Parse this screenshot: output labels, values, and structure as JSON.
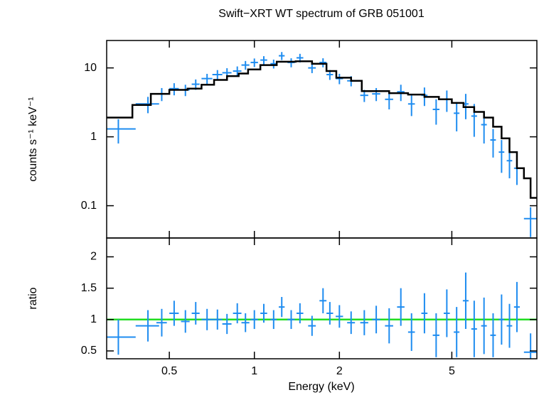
{
  "chart_data": [
    {
      "type": "scatter",
      "title": "Swift−XRT WT spectrum of GRB 051001",
      "ylabel": "counts s⁻¹ keV⁻¹",
      "xscale": "log",
      "yscale": "log",
      "xlim": [
        0.3,
        10
      ],
      "ylim": [
        0.034,
        25
      ],
      "xticks": [
        0.5,
        1,
        2,
        5
      ],
      "yticks": [
        0.1,
        1,
        10
      ],
      "data": {
        "color": "#1e8cf0",
        "x": [
          0.33,
          0.42,
          0.47,
          0.52,
          0.57,
          0.62,
          0.68,
          0.74,
          0.8,
          0.87,
          0.93,
          1.0,
          1.08,
          1.17,
          1.25,
          1.35,
          1.45,
          1.6,
          1.75,
          1.85,
          2.0,
          2.2,
          2.45,
          2.7,
          3.0,
          3.3,
          3.6,
          4.0,
          4.4,
          4.8,
          5.2,
          5.6,
          6.0,
          6.5,
          7.0,
          7.5,
          8.0,
          8.5,
          9.5
        ],
        "x_errors": [
          0.05,
          0.04,
          0.02,
          0.02,
          0.02,
          0.02,
          0.03,
          0.03,
          0.03,
          0.03,
          0.03,
          0.03,
          0.03,
          0.03,
          0.03,
          0.04,
          0.04,
          0.05,
          0.05,
          0.05,
          0.06,
          0.07,
          0.08,
          0.09,
          0.1,
          0.1,
          0.1,
          0.1,
          0.12,
          0.12,
          0.12,
          0.13,
          0.14,
          0.15,
          0.16,
          0.17,
          0.18,
          0.2,
          0.5
        ],
        "values": [
          1.3,
          3.0,
          4.2,
          5.0,
          4.8,
          5.8,
          7.0,
          8.0,
          8.5,
          9.0,
          11,
          12,
          13,
          11.5,
          15,
          12,
          14,
          10,
          12,
          8,
          7,
          6.5,
          4,
          4.2,
          3.5,
          4.5,
          3.0,
          4.0,
          2.5,
          3.5,
          2.2,
          3.0,
          2.0,
          1.5,
          0.9,
          0.6,
          0.45,
          0.35,
          0.065
        ],
        "errors": [
          0.5,
          0.8,
          0.9,
          1.0,
          0.9,
          1.0,
          1.2,
          1.3,
          1.4,
          1.5,
          1.6,
          1.7,
          1.8,
          1.7,
          2,
          1.8,
          2,
          1.6,
          1.8,
          1.3,
          1.2,
          1.1,
          0.8,
          0.9,
          1.0,
          1.2,
          1.0,
          1.2,
          1.0,
          1.2,
          1.0,
          1.2,
          1.0,
          0.7,
          0.4,
          0.3,
          0.2,
          0.15,
          0.03
        ]
      },
      "model": {
        "color": "#000000",
        "x": [
          0.3,
          0.37,
          0.43,
          0.5,
          0.58,
          0.65,
          0.72,
          0.8,
          0.88,
          0.95,
          1.05,
          1.2,
          1.4,
          1.6,
          1.8,
          1.95,
          2.2,
          2.4,
          3,
          3.5,
          4,
          4.5,
          5,
          5.5,
          6,
          6.5,
          7,
          7.5,
          8,
          8.5,
          9,
          9.5,
          10
        ],
        "values": [
          1.9,
          2.9,
          4.2,
          4.8,
          5,
          5.7,
          6.7,
          7.6,
          8.3,
          9.5,
          11,
          12.3,
          12.5,
          11.5,
          9,
          7.2,
          6.5,
          4.6,
          4.3,
          4.1,
          3.8,
          3.5,
          3.1,
          2.7,
          2.3,
          1.9,
          1.4,
          0.95,
          0.6,
          0.35,
          0.25,
          0.13,
          0.13
        ]
      }
    },
    {
      "type": "scatter",
      "xlabel": "Energy (keV)",
      "ylabel": "ratio",
      "xscale": "log",
      "yscale": "linear",
      "xlim": [
        0.3,
        10
      ],
      "ylim": [
        0.375,
        2.3
      ],
      "xticks": [
        0.5,
        1,
        2,
        5
      ],
      "yticks": [
        0.5,
        1,
        1.5,
        2
      ],
      "reference_line": {
        "value": 1,
        "color": "#22dd22"
      },
      "data": {
        "color": "#1e8cf0",
        "x": [
          0.33,
          0.42,
          0.47,
          0.52,
          0.57,
          0.62,
          0.68,
          0.74,
          0.8,
          0.87,
          0.93,
          1.0,
          1.08,
          1.17,
          1.25,
          1.35,
          1.45,
          1.6,
          1.75,
          1.85,
          2.0,
          2.2,
          2.45,
          2.7,
          3.0,
          3.3,
          3.6,
          4.0,
          4.4,
          4.8,
          5.2,
          5.6,
          6.0,
          6.5,
          7.0,
          7.5,
          8.0,
          8.5,
          9.5
        ],
        "x_errors": [
          0.05,
          0.04,
          0.02,
          0.02,
          0.02,
          0.02,
          0.03,
          0.03,
          0.03,
          0.03,
          0.03,
          0.03,
          0.03,
          0.03,
          0.03,
          0.04,
          0.04,
          0.05,
          0.05,
          0.05,
          0.06,
          0.07,
          0.08,
          0.09,
          0.1,
          0.1,
          0.1,
          0.1,
          0.12,
          0.12,
          0.12,
          0.13,
          0.14,
          0.15,
          0.16,
          0.17,
          0.18,
          0.2,
          0.5
        ],
        "values": [
          0.72,
          0.9,
          0.95,
          1.1,
          0.97,
          1.1,
          1.0,
          1.0,
          0.93,
          1.1,
          0.95,
          1.0,
          1.1,
          1.0,
          1.2,
          1.0,
          1.1,
          0.9,
          1.3,
          1.1,
          1.05,
          0.95,
          0.95,
          1.0,
          0.9,
          1.2,
          0.8,
          1.1,
          0.75,
          1.1,
          0.8,
          1.3,
          0.85,
          0.9,
          0.75,
          1.0,
          0.9,
          1.2,
          0.48
        ],
        "errors": [
          0.28,
          0.25,
          0.22,
          0.2,
          0.18,
          0.18,
          0.17,
          0.16,
          0.16,
          0.16,
          0.15,
          0.15,
          0.15,
          0.15,
          0.16,
          0.15,
          0.16,
          0.16,
          0.2,
          0.18,
          0.18,
          0.18,
          0.2,
          0.22,
          0.28,
          0.3,
          0.3,
          0.32,
          0.35,
          0.38,
          0.4,
          0.45,
          0.45,
          0.45,
          0.35,
          0.4,
          0.35,
          0.4,
          0.3
        ]
      }
    }
  ]
}
